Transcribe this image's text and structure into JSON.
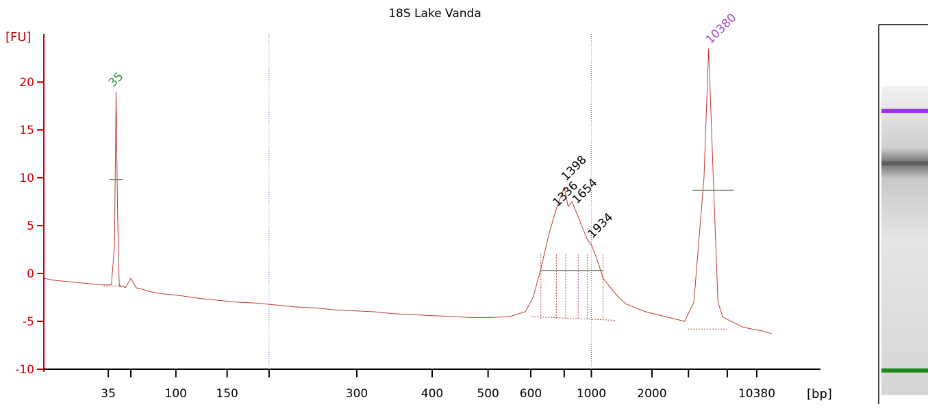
{
  "chart_data": {
    "type": "line",
    "title": "18S Lake Vanda",
    "ylabel": "[FU]",
    "xlabel": "[bp]",
    "ylim": [
      -10,
      25
    ],
    "y_ticks": [
      -10,
      -5,
      0,
      5,
      10,
      15,
      20
    ],
    "y_tick_labels": [
      "-10",
      "-5",
      "0",
      "5",
      "10",
      "15",
      "20"
    ],
    "x_tick_labels": [
      "35",
      "100",
      "150",
      "300",
      "400",
      "500",
      "600",
      "1000",
      "2000",
      "10380"
    ],
    "scale": "electropherogram (nonlinear size axis)",
    "series": [
      {
        "color": "#c0392b",
        "x": [
          0,
          12,
          25,
          37,
          50,
          62,
          75,
          87,
          91,
          93,
          95,
          97,
          98,
          100,
          105,
          112,
          119,
          125,
          137,
          150,
          175,
          200,
          225,
          250,
          275,
          300,
          325,
          350,
          375,
          400,
          425,
          450,
          475,
          500,
          525,
          550,
          575,
          600,
          620,
          630,
          640,
          650,
          660,
          670,
          675,
          680,
          685,
          690,
          695,
          700,
          705,
          710,
          715,
          720,
          730,
          740,
          750,
          775,
          800,
          825,
          837,
          850,
          856,
          862,
          868,
          874,
          880,
          890,
          900,
          912,
          925,
          937
        ],
        "y": [
          -0.5,
          -0.7,
          -0.8,
          -0.9,
          -1.0,
          -1.1,
          -1.2,
          -1.2,
          3,
          19,
          6,
          -1.0,
          -1.4,
          -1.3,
          -1.5,
          -0.5,
          -1.5,
          -1.6,
          -1.9,
          -2.1,
          -2.3,
          -2.6,
          -2.8,
          -3.0,
          -3.1,
          -3.3,
          -3.5,
          -3.6,
          -3.8,
          -3.9,
          -4.0,
          -4.2,
          -4.3,
          -4.4,
          -4.5,
          -4.6,
          -4.6,
          -4.5,
          -4.0,
          -2.5,
          0.5,
          4.0,
          6.8,
          9.0,
          7.0,
          7.5,
          6.5,
          5.5,
          4.5,
          3.5,
          3.0,
          2.0,
          0.8,
          -0.5,
          -1.5,
          -2.5,
          -3.2,
          -4.0,
          -4.5,
          -5.0,
          -3.0,
          10,
          23.5,
          10,
          -3.0,
          -4.5,
          -4.8,
          -5.2,
          -5.6,
          -5.8,
          -6.0,
          -6.3
        ]
      }
    ],
    "peaks": [
      {
        "label": "35",
        "color": "#2e8b2e",
        "x": 93,
        "y": 19
      },
      {
        "label": "1336",
        "color": "#000000",
        "x": 665,
        "y": 6.5
      },
      {
        "label": "1398",
        "color": "#000000",
        "x": 676,
        "y": 9.2
      },
      {
        "label": "1654",
        "color": "#000000",
        "x": 690,
        "y": 6.8
      },
      {
        "label": "1934",
        "color": "#000000",
        "x": 710,
        "y": 3.2
      },
      {
        "label": "10380",
        "color": "#a04ad0",
        "x": 862,
        "y": 23.5
      }
    ],
    "gel": {
      "bands": [
        {
          "position": 0.08,
          "color": "#9b30e8",
          "intensity": 1.0
        },
        {
          "position": 0.25,
          "color": "#555555",
          "intensity": 0.7
        },
        {
          "position": 0.92,
          "color": "#1a8a1a",
          "intensity": 1.0
        }
      ]
    }
  }
}
